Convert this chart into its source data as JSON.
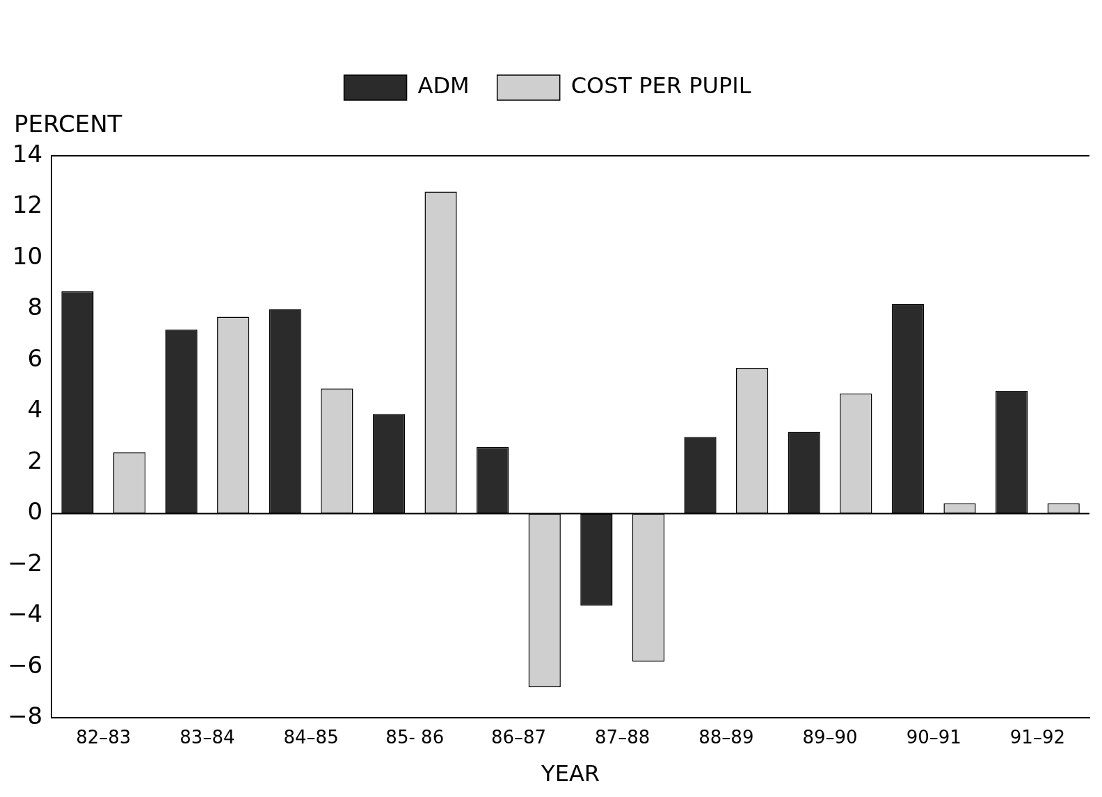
{
  "chart_data": {
    "type": "bar",
    "ylabel": "PERCENT",
    "xlabel": "YEAR",
    "categories": [
      "82–83",
      "83–84",
      "84–85",
      "85- 86",
      "86–87",
      "87–88",
      "88–89",
      "89–90",
      "90–91",
      "91–92"
    ],
    "series": [
      {
        "name": "ADM",
        "color": "#2b2b2b",
        "values": [
          8.7,
          7.2,
          8.0,
          3.9,
          2.6,
          -3.6,
          3.0,
          3.2,
          8.2,
          4.8
        ]
      },
      {
        "name": "COST PER PUPIL",
        "color": "#cfcfcf",
        "values": [
          2.4,
          7.7,
          4.9,
          12.6,
          -6.8,
          -5.8,
          5.7,
          4.7,
          0.4,
          0.4
        ]
      }
    ],
    "ylim": [
      -8,
      14
    ],
    "yticks": [
      -8,
      -6,
      -4,
      -2,
      0,
      2,
      4,
      6,
      8,
      10,
      12,
      14
    ],
    "grid": false,
    "legend": "top",
    "ref_lines": [
      {
        "axis": "y",
        "value": 0,
        "color": "#000000"
      }
    ]
  }
}
